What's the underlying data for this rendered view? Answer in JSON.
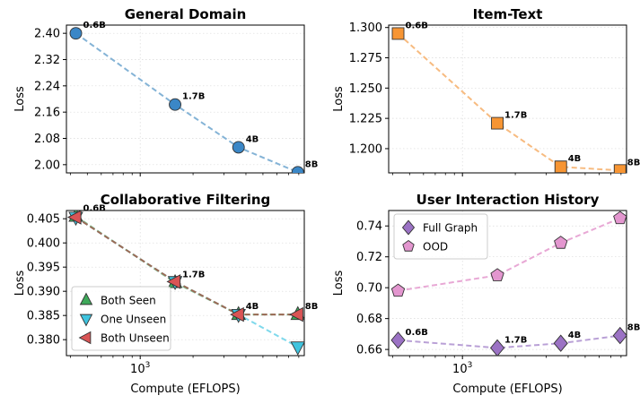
{
  "x_label": "Compute (EFLOPS)",
  "y_label": "Loss",
  "x_tick_label": "10^3",
  "chart_data": [
    {
      "type": "line",
      "title": "General Domain",
      "xscale": "log",
      "xlim": [
        380,
        8600
      ],
      "ylim": [
        1.975,
        2.425
      ],
      "yticks": [
        2.0,
        2.08,
        2.16,
        2.24,
        2.32,
        2.4
      ],
      "ytick_decimals": 2,
      "legend": null,
      "series": [
        {
          "name": "General Domain",
          "marker": "circle",
          "color": "#3b87c7",
          "line_color": "#84b3d6",
          "x": [
            430,
            1580,
            3630,
            7900
          ],
          "y": [
            2.4,
            2.183,
            2.053,
            1.977
          ]
        }
      ],
      "point_labels": {
        "series": 0,
        "labels": [
          "0.6B",
          "1.7B",
          "4B",
          "8B"
        ]
      }
    },
    {
      "type": "line",
      "title": "Item-Text",
      "xscale": "log",
      "xlim": [
        380,
        8600
      ],
      "ylim": [
        1.18,
        1.302
      ],
      "yticks": [
        1.2,
        1.225,
        1.25,
        1.275,
        1.3
      ],
      "ytick_decimals": 3,
      "legend": null,
      "series": [
        {
          "name": "Item-Text",
          "marker": "square",
          "color": "#f79533",
          "line_color": "#f7bb80",
          "x": [
            430,
            1580,
            3630,
            7900
          ],
          "y": [
            1.295,
            1.221,
            1.185,
            1.182
          ]
        }
      ],
      "point_labels": {
        "series": 0,
        "labels": [
          "0.6B",
          "1.7B",
          "4B",
          "8B"
        ]
      }
    },
    {
      "type": "line",
      "title": "Collaborative Filtering",
      "xscale": "log",
      "xlim": [
        380,
        8600
      ],
      "ylim": [
        0.3767,
        0.4067
      ],
      "yticks": [
        0.38,
        0.385,
        0.39,
        0.395,
        0.4,
        0.405
      ],
      "ytick_decimals": 3,
      "legend": {
        "position": "lower-left",
        "entries": [
          "Both Seen",
          "One Unseen",
          "Both Unseen"
        ]
      },
      "series": [
        {
          "name": "Both Seen",
          "marker": "triangle-up",
          "color": "#3ea95a",
          "line_color": "#88c998",
          "x": [
            430,
            1580,
            3630,
            7900
          ],
          "y": [
            0.4055,
            0.3918,
            0.3852,
            0.3852
          ]
        },
        {
          "name": "One Unseen",
          "marker": "triangle-down",
          "color": "#3fc4df",
          "line_color": "#7fd9ec",
          "x": [
            430,
            1580,
            3630,
            7900
          ],
          "y": [
            0.4053,
            0.392,
            0.3852,
            0.3785
          ]
        },
        {
          "name": "Both Unseen",
          "marker": "triangle-left",
          "color": "#d95455",
          "line_color": "#9b6a55",
          "x": [
            430,
            1580,
            3630,
            7900
          ],
          "y": [
            0.4053,
            0.392,
            0.3852,
            0.3852
          ]
        }
      ],
      "point_labels": {
        "series": 0,
        "labels": [
          "0.6B",
          "1.7B",
          "4B",
          "8B"
        ]
      }
    },
    {
      "type": "line",
      "title": "User Interaction History",
      "xscale": "log",
      "xlim": [
        380,
        8600
      ],
      "ylim": [
        0.656,
        0.75
      ],
      "yticks": [
        0.66,
        0.68,
        0.7,
        0.72,
        0.74
      ],
      "ytick_decimals": 2,
      "legend": {
        "position": "upper-left",
        "entries": [
          "Full Graph",
          "OOD"
        ]
      },
      "series": [
        {
          "name": "Full Graph",
          "marker": "diamond",
          "color": "#9b72c4",
          "line_color": "#b9a0d6",
          "x": [
            430,
            1580,
            3630,
            7900
          ],
          "y": [
            0.666,
            0.661,
            0.664,
            0.669
          ]
        },
        {
          "name": "OOD",
          "marker": "pentagon",
          "color": "#e396cf",
          "line_color": "#e8a8d5",
          "x": [
            430,
            1580,
            3630,
            7900
          ],
          "y": [
            0.698,
            0.708,
            0.729,
            0.745
          ]
        }
      ],
      "point_labels": {
        "series": 0,
        "labels": [
          "0.6B",
          "1.7B",
          "4B",
          "8B"
        ]
      }
    }
  ]
}
